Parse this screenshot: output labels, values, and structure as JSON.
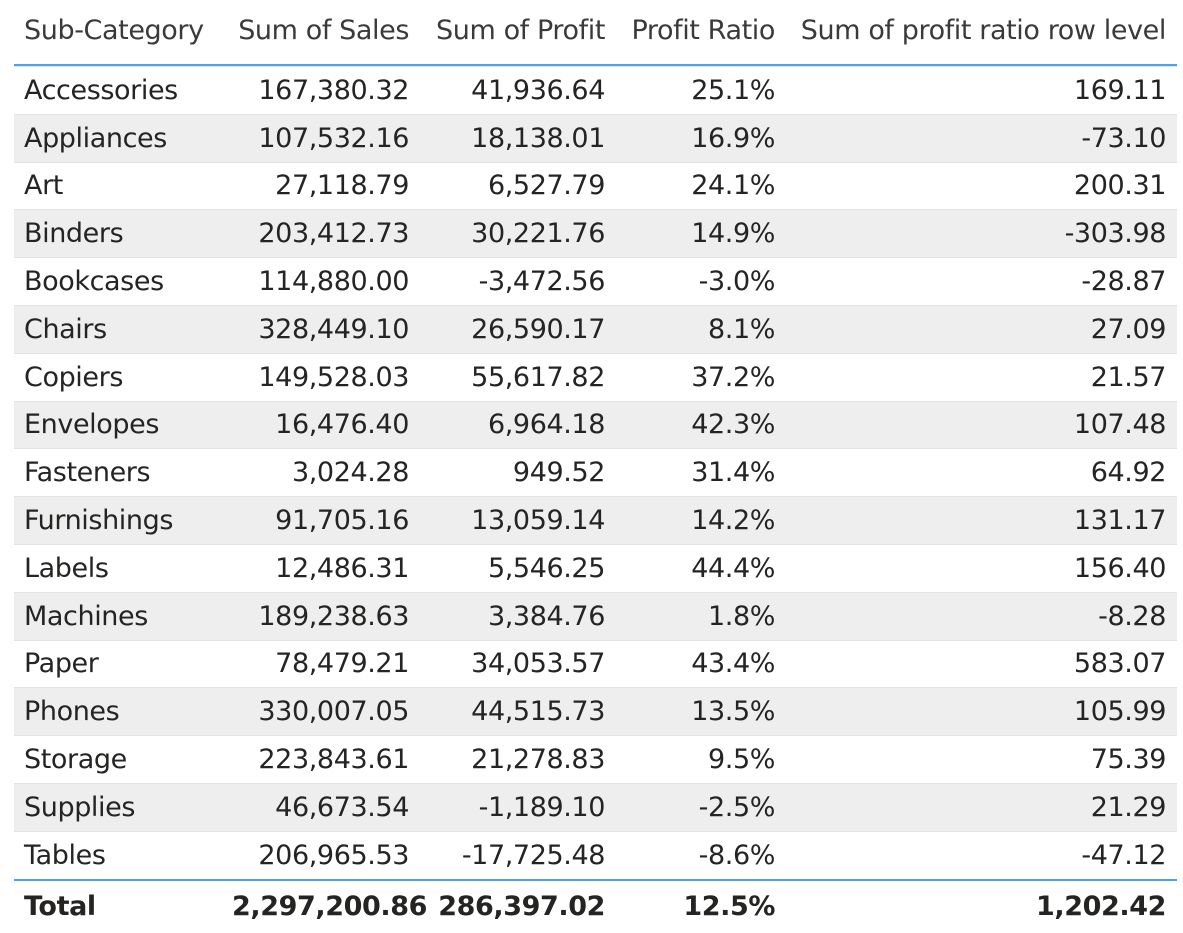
{
  "table": {
    "headers": [
      "Sub-Category",
      "Sum of Sales",
      "Sum of Profit",
      "Profit Ratio",
      "Sum of profit ratio row level"
    ],
    "rows": [
      [
        "Accessories",
        "167,380.32",
        "41,936.64",
        "25.1%",
        "169.11"
      ],
      [
        "Appliances",
        "107,532.16",
        "18,138.01",
        "16.9%",
        "-73.10"
      ],
      [
        "Art",
        "27,118.79",
        "6,527.79",
        "24.1%",
        "200.31"
      ],
      [
        "Binders",
        "203,412.73",
        "30,221.76",
        "14.9%",
        "-303.98"
      ],
      [
        "Bookcases",
        "114,880.00",
        "-3,472.56",
        "-3.0%",
        "-28.87"
      ],
      [
        "Chairs",
        "328,449.10",
        "26,590.17",
        "8.1%",
        "27.09"
      ],
      [
        "Copiers",
        "149,528.03",
        "55,617.82",
        "37.2%",
        "21.57"
      ],
      [
        "Envelopes",
        "16,476.40",
        "6,964.18",
        "42.3%",
        "107.48"
      ],
      [
        "Fasteners",
        "3,024.28",
        "949.52",
        "31.4%",
        "64.92"
      ],
      [
        "Furnishings",
        "91,705.16",
        "13,059.14",
        "14.2%",
        "131.17"
      ],
      [
        "Labels",
        "12,486.31",
        "5,546.25",
        "44.4%",
        "156.40"
      ],
      [
        "Machines",
        "189,238.63",
        "3,384.76",
        "1.8%",
        "-8.28"
      ],
      [
        "Paper",
        "78,479.21",
        "34,053.57",
        "43.4%",
        "583.07"
      ],
      [
        "Phones",
        "330,007.05",
        "44,515.73",
        "13.5%",
        "105.99"
      ],
      [
        "Storage",
        "223,843.61",
        "21,278.83",
        "9.5%",
        "75.39"
      ],
      [
        "Supplies",
        "46,673.54",
        "-1,189.10",
        "-2.5%",
        "21.29"
      ],
      [
        "Tables",
        "206,965.53",
        "-17,725.48",
        "-8.6%",
        "-47.12"
      ]
    ],
    "total": [
      "Total",
      "2,297,200.86",
      "286,397.02",
      "12.5%",
      "1,202.42"
    ]
  },
  "colors": {
    "accent": "#4ea3e8",
    "row_shade": "#eeeeee",
    "text": "#252423"
  }
}
